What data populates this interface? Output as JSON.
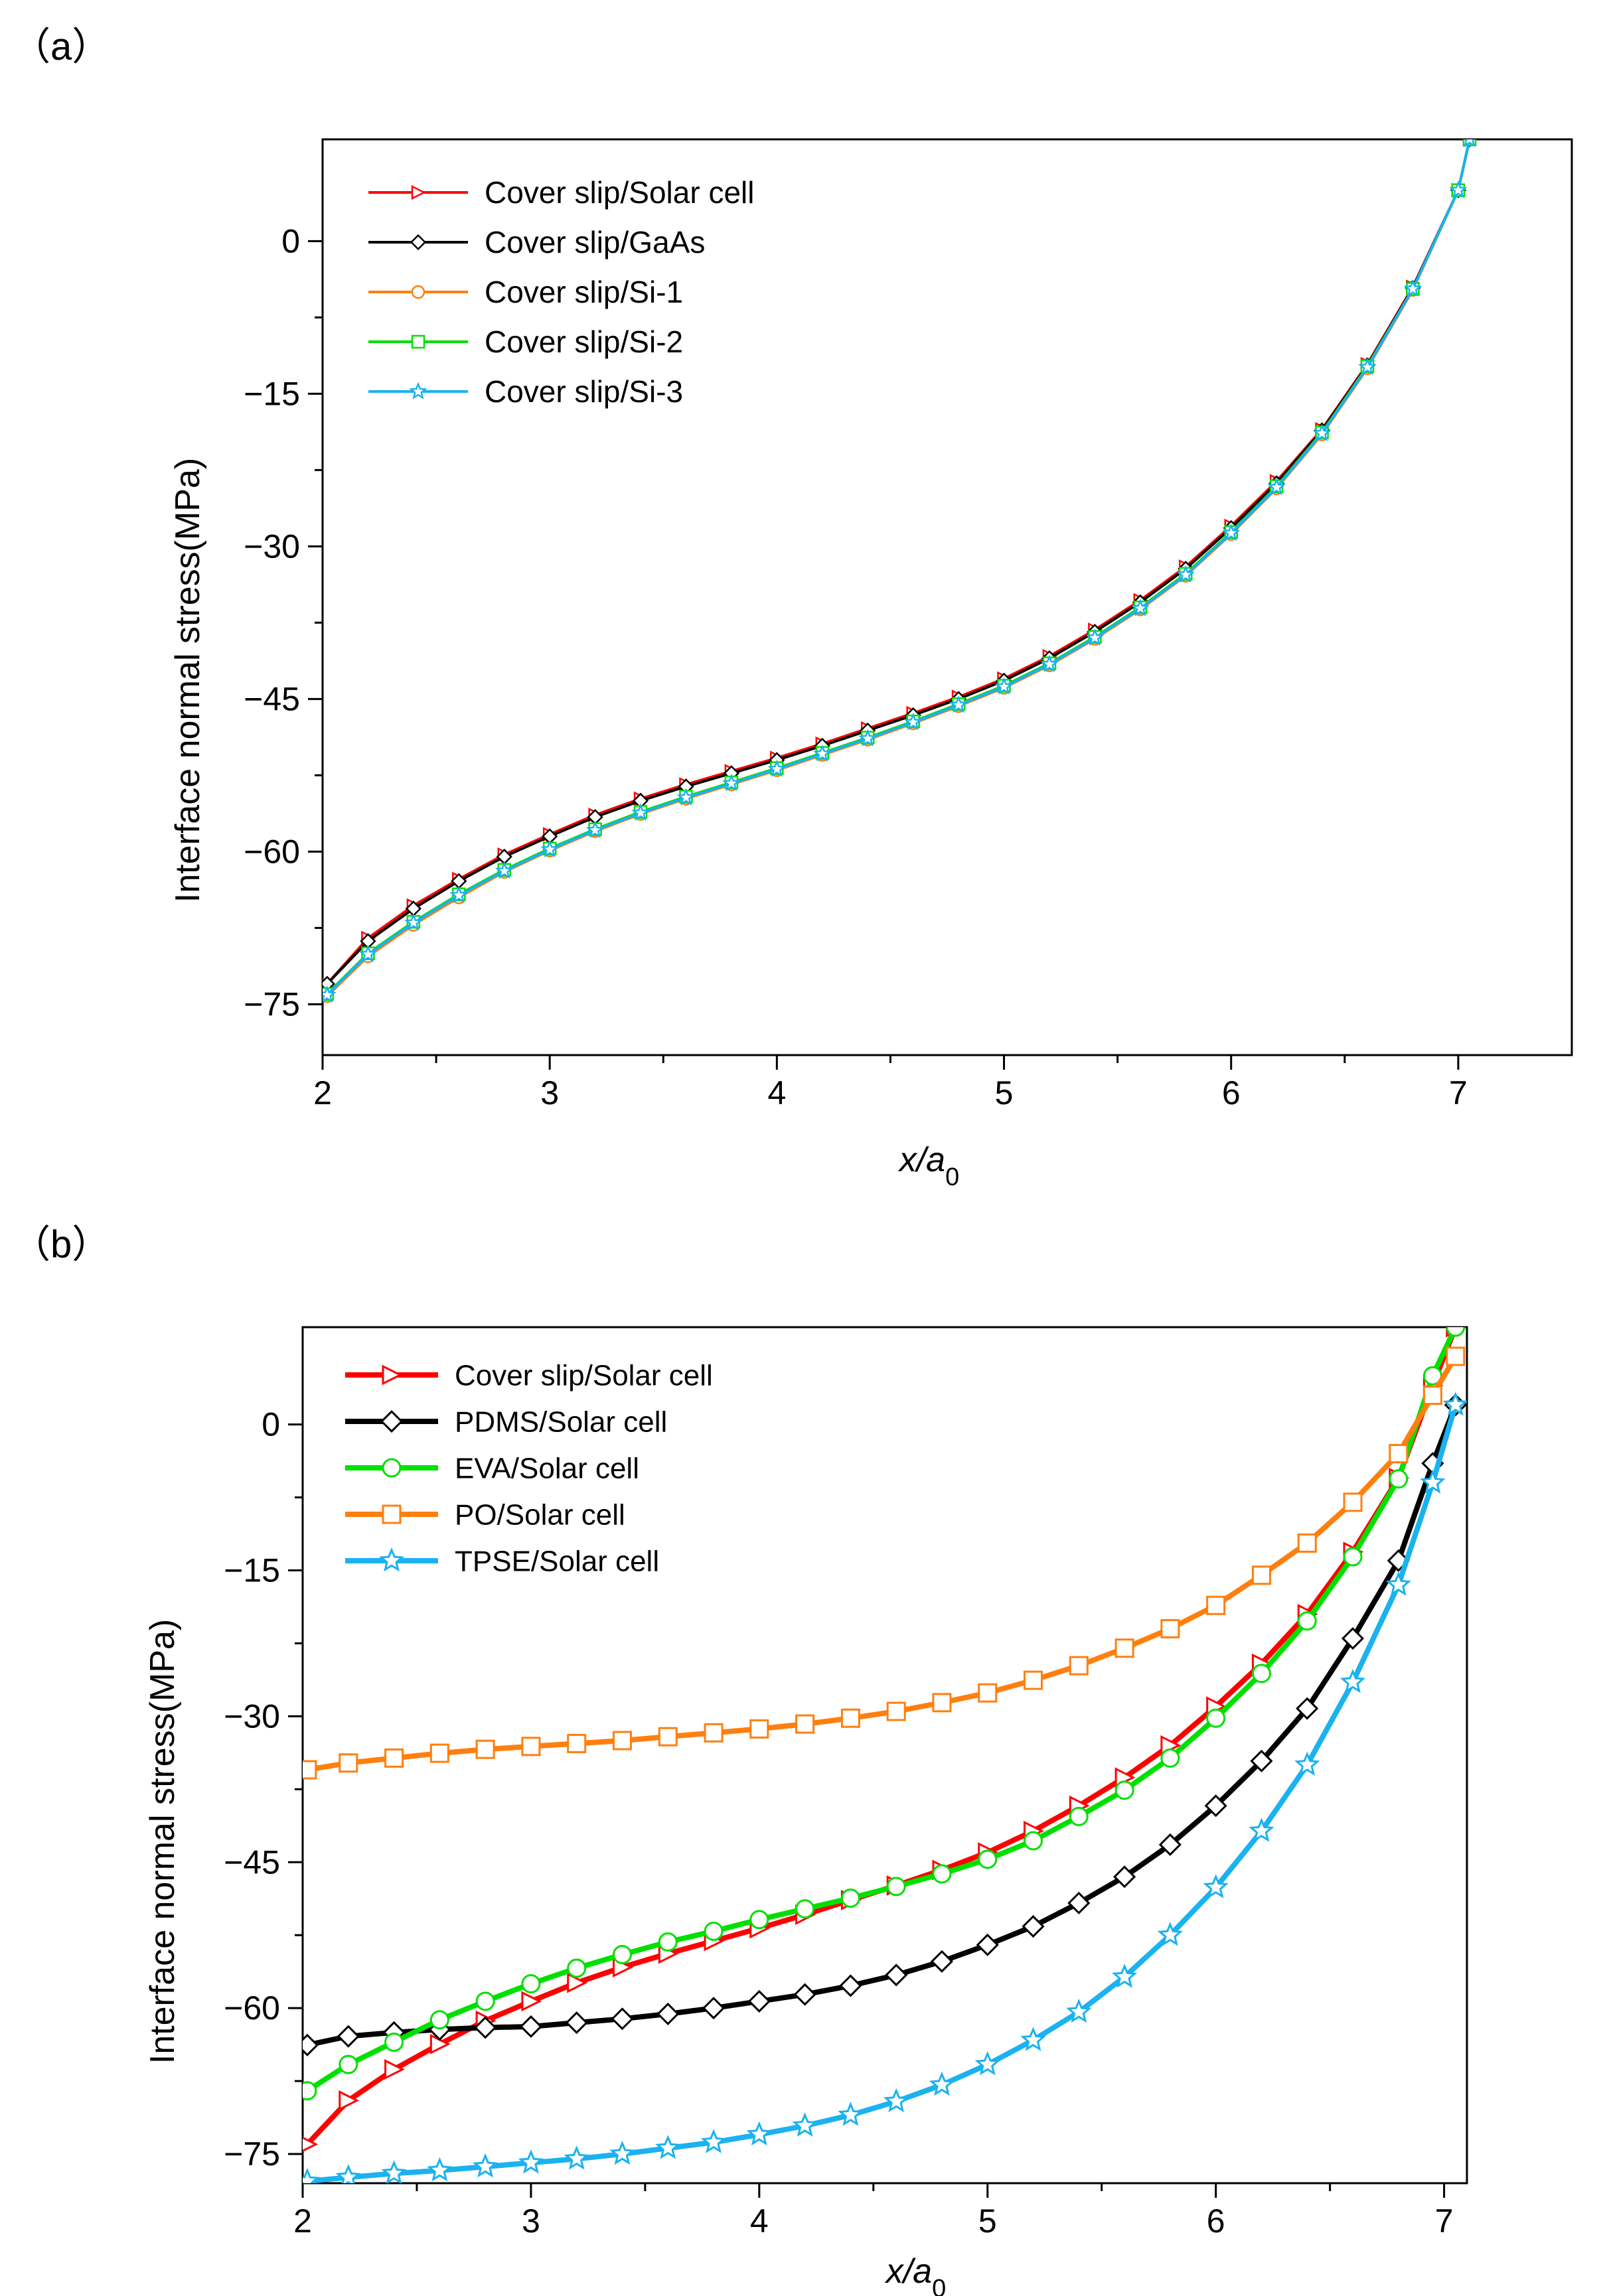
{
  "colors": {
    "red": "#ff0000",
    "black": "#000000",
    "orange": "#ff7f0e",
    "green": "#00e000",
    "lightblue": "#1ab2f0"
  },
  "chart_data": [
    {
      "panel": "（a）",
      "type": "line",
      "title": "",
      "xlabel": "x/a0",
      "xlabel_main": "x/a",
      "xlabel_sub": "0",
      "ylabel": "Interface normal stress(MPa)",
      "xlim": [
        2,
        7.5
      ],
      "ylim": [
        -80,
        10
      ],
      "xticks": [
        2,
        3,
        4,
        5,
        6,
        7
      ],
      "yticks": [
        0,
        -15,
        -30,
        -45,
        -60,
        -75
      ],
      "ytick_labels": [
        "0",
        "−15",
        "−30",
        "−45",
        "−60",
        "−75"
      ],
      "legend_position": "top-left",
      "x": [
        2.02,
        2.2,
        2.4,
        2.6,
        2.8,
        3.0,
        3.2,
        3.4,
        3.6,
        3.8,
        4.0,
        4.2,
        4.4,
        4.6,
        4.8,
        5.0,
        5.2,
        5.4,
        5.6,
        5.8,
        6.0,
        6.2,
        6.4,
        6.6,
        6.8,
        7.0,
        7.05
      ],
      "series": [
        {
          "name": "Cover slip/Solar cell",
          "color": "#ff0000",
          "marker": "triangle-right",
          "values": [
            -73,
            -68.5,
            -65.3,
            -62.7,
            -60.3,
            -58.3,
            -56.4,
            -54.8,
            -53.4,
            -52.1,
            -50.8,
            -49.4,
            -47.9,
            -46.4,
            -44.8,
            -43.0,
            -40.8,
            -38.2,
            -35.3,
            -32.0,
            -28.0,
            -23.6,
            -18.5,
            -12.1,
            -4.5,
            5.0,
            10.0
          ]
        },
        {
          "name": "Cover slip/GaAs",
          "color": "#000000",
          "marker": "diamond",
          "values": [
            -73,
            -68.8,
            -65.6,
            -62.9,
            -60.5,
            -58.5,
            -56.6,
            -55.0,
            -53.6,
            -52.3,
            -51.0,
            -49.6,
            -48.1,
            -46.6,
            -45.0,
            -43.2,
            -41.0,
            -38.4,
            -35.5,
            -32.2,
            -28.2,
            -23.8,
            -18.6,
            -12.2,
            -4.6,
            5.0,
            10.0
          ]
        },
        {
          "name": "Cover slip/Si-1",
          "color": "#ff7f0e",
          "marker": "circle",
          "values": [
            -74.2,
            -70.3,
            -67.2,
            -64.5,
            -62.0,
            -59.9,
            -58.0,
            -56.3,
            -54.8,
            -53.4,
            -52.0,
            -50.5,
            -49.0,
            -47.4,
            -45.7,
            -43.9,
            -41.7,
            -39.1,
            -36.2,
            -32.9,
            -28.8,
            -24.3,
            -19.0,
            -12.5,
            -4.8,
            5.0,
            10.0
          ]
        },
        {
          "name": "Cover slip/Si-2",
          "color": "#00e000",
          "marker": "square",
          "values": [
            -74.0,
            -70.0,
            -66.9,
            -64.2,
            -61.8,
            -59.7,
            -57.8,
            -56.1,
            -54.6,
            -53.2,
            -51.8,
            -50.3,
            -48.8,
            -47.2,
            -45.5,
            -43.7,
            -41.5,
            -38.9,
            -36.0,
            -32.7,
            -28.6,
            -24.1,
            -18.8,
            -12.3,
            -4.7,
            5.0,
            10.0
          ]
        },
        {
          "name": "Cover slip/Si-3",
          "color": "#1ab2f0",
          "marker": "star",
          "values": [
            -74.1,
            -70.1,
            -67.0,
            -64.3,
            -61.9,
            -59.8,
            -57.9,
            -56.2,
            -54.7,
            -53.3,
            -51.9,
            -50.4,
            -48.9,
            -47.3,
            -45.6,
            -43.8,
            -41.6,
            -39.0,
            -36.1,
            -32.8,
            -28.7,
            -24.2,
            -18.9,
            -12.4,
            -4.7,
            5.0,
            10.0
          ]
        }
      ]
    },
    {
      "panel": "（b）",
      "type": "line",
      "title": "",
      "xlabel": "x/a0",
      "xlabel_main": "x/a",
      "xlabel_sub": "0",
      "ylabel": "Interface normal stress(MPa)",
      "xlim": [
        2,
        7.1
      ],
      "ylim": [
        -78,
        10
      ],
      "xticks": [
        2,
        3,
        4,
        5,
        6,
        7
      ],
      "yticks": [
        0,
        -15,
        -30,
        -45,
        -60,
        -75
      ],
      "ytick_labels": [
        "0",
        "−15",
        "−30",
        "−45",
        "−60",
        "−75"
      ],
      "legend_position": "top-left",
      "x": [
        2.02,
        2.2,
        2.4,
        2.6,
        2.8,
        3.0,
        3.2,
        3.4,
        3.6,
        3.8,
        4.0,
        4.2,
        4.4,
        4.6,
        4.8,
        5.0,
        5.2,
        5.4,
        5.6,
        5.8,
        6.0,
        6.2,
        6.4,
        6.6,
        6.8,
        6.95,
        7.05
      ],
      "series": [
        {
          "name": "Cover slip/Solar cell",
          "color": "#ff0000",
          "marker": "triangle-right",
          "values": [
            -74,
            -69.5,
            -66.3,
            -63.7,
            -61.3,
            -59.3,
            -57.4,
            -55.8,
            -54.4,
            -53.1,
            -51.8,
            -50.4,
            -48.9,
            -47.4,
            -45.8,
            -44.0,
            -41.8,
            -39.2,
            -36.3,
            -33.0,
            -29.0,
            -24.6,
            -19.5,
            -13.1,
            -5.5,
            4.0,
            10.0
          ]
        },
        {
          "name": "PDMS/Solar cell",
          "color": "#000000",
          "marker": "diamond",
          "values": [
            -63.8,
            -62.9,
            -62.5,
            -62.2,
            -62.0,
            -61.9,
            -61.5,
            -61.1,
            -60.6,
            -60.0,
            -59.3,
            -58.6,
            -57.7,
            -56.6,
            -55.2,
            -53.5,
            -51.6,
            -49.2,
            -46.5,
            -43.2,
            -39.2,
            -34.6,
            -29.2,
            -22.0,
            -14.0,
            -4.0,
            2.0
          ]
        },
        {
          "name": "EVA/Solar cell",
          "color": "#00e000",
          "marker": "circle",
          "values": [
            -68.5,
            -65.8,
            -63.5,
            -61.2,
            -59.3,
            -57.5,
            -55.9,
            -54.5,
            -53.2,
            -52.1,
            -50.9,
            -49.8,
            -48.7,
            -47.5,
            -46.2,
            -44.7,
            -42.8,
            -40.3,
            -37.6,
            -34.3,
            -30.2,
            -25.6,
            -20.2,
            -13.6,
            -5.6,
            5.0,
            10.0
          ]
        },
        {
          "name": "PO/Solar cell",
          "color": "#ff7f0e",
          "marker": "square",
          "values": [
            -35.5,
            -34.8,
            -34.3,
            -33.8,
            -33.4,
            -33.1,
            -32.8,
            -32.5,
            -32.1,
            -31.7,
            -31.3,
            -30.8,
            -30.2,
            -29.5,
            -28.6,
            -27.6,
            -26.3,
            -24.8,
            -23.0,
            -21.0,
            -18.6,
            -15.5,
            -12.2,
            -8.0,
            -3.0,
            3.0,
            7.0
          ]
        },
        {
          "name": "TPSE/Solar cell",
          "color": "#1ab2f0",
          "marker": "star",
          "values": [
            -77.8,
            -77.4,
            -77.0,
            -76.7,
            -76.3,
            -75.9,
            -75.5,
            -75.0,
            -74.4,
            -73.8,
            -73.0,
            -72.1,
            -71.0,
            -69.6,
            -67.9,
            -65.8,
            -63.3,
            -60.4,
            -56.8,
            -52.5,
            -47.6,
            -41.8,
            -35.0,
            -26.5,
            -16.5,
            -6.0,
            2.0
          ]
        }
      ]
    }
  ]
}
